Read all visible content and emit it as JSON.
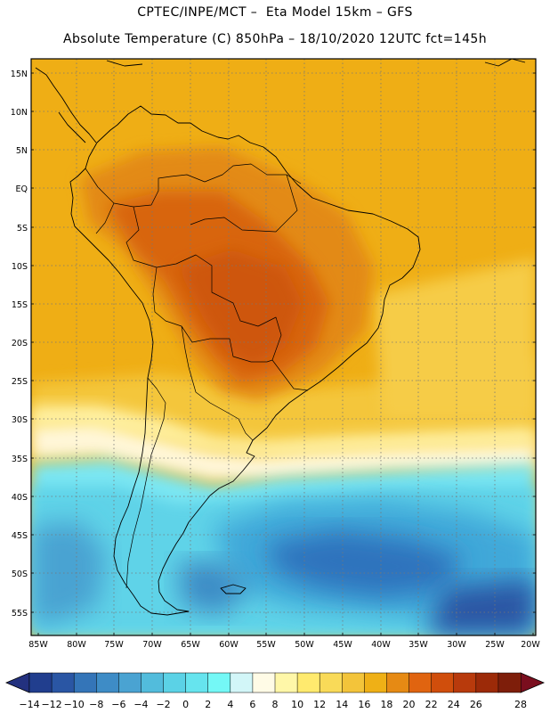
{
  "title_line1": "CPTEC/INPE/MCT –  Eta Model 15km – GFS",
  "title_line2": "Absolute Temperature (C) 850hPa – 18/10/2020 12UTC fct=145h",
  "lat_ticks": [
    "15N",
    "10N",
    "5N",
    "EQ",
    "5S",
    "10S",
    "15S",
    "20S",
    "25S",
    "30S",
    "35S",
    "40S",
    "45S",
    "50S",
    "55S"
  ],
  "lon_ticks": [
    "85W",
    "80W",
    "75W",
    "70W",
    "65W",
    "60W",
    "55W",
    "50W",
    "45W",
    "40W",
    "35W",
    "30W",
    "25W",
    "20W"
  ],
  "colorbar": {
    "labels": [
      "-14",
      "-12",
      "-10",
      "-8",
      "-6",
      "-4",
      "-2",
      "0",
      "2",
      "4",
      "6",
      "8",
      "10",
      "12",
      "14",
      "16",
      "18",
      "20",
      "22",
      "24",
      "26",
      "28"
    ],
    "colors": [
      "#213E8E",
      "#2A56A4",
      "#3475B8",
      "#3E8CC6",
      "#4AA3D2",
      "#52BCDC",
      "#5BD2E6",
      "#66E4EE",
      "#74F8F6",
      "#D2F6F8",
      "#FFFBE6",
      "#FFF7A8",
      "#FFEA6E",
      "#F9DA58",
      "#F3C43A",
      "#EFB016",
      "#E68A14",
      "#E06410",
      "#D04E0C",
      "#B83A0C",
      "#9C2A08",
      "#7E1E0A"
    ],
    "low_arrow_color": "#23317F",
    "high_arrow_color": "#7A0E1E"
  },
  "legend_colors": {
    "ocean_warm": "#EDB21A",
    "land_warm": "#E38A15",
    "land_hot": "#D8650E",
    "subtropical": "#F5C93E",
    "front_cream": "#FFF6D8",
    "cold_light": "#7BE7F3",
    "cold": "#5FD3E8",
    "cold_deep": "#3FA8D9",
    "cold_core": "#2F73BD",
    "border": "#000000",
    "grid": "#777777"
  }
}
